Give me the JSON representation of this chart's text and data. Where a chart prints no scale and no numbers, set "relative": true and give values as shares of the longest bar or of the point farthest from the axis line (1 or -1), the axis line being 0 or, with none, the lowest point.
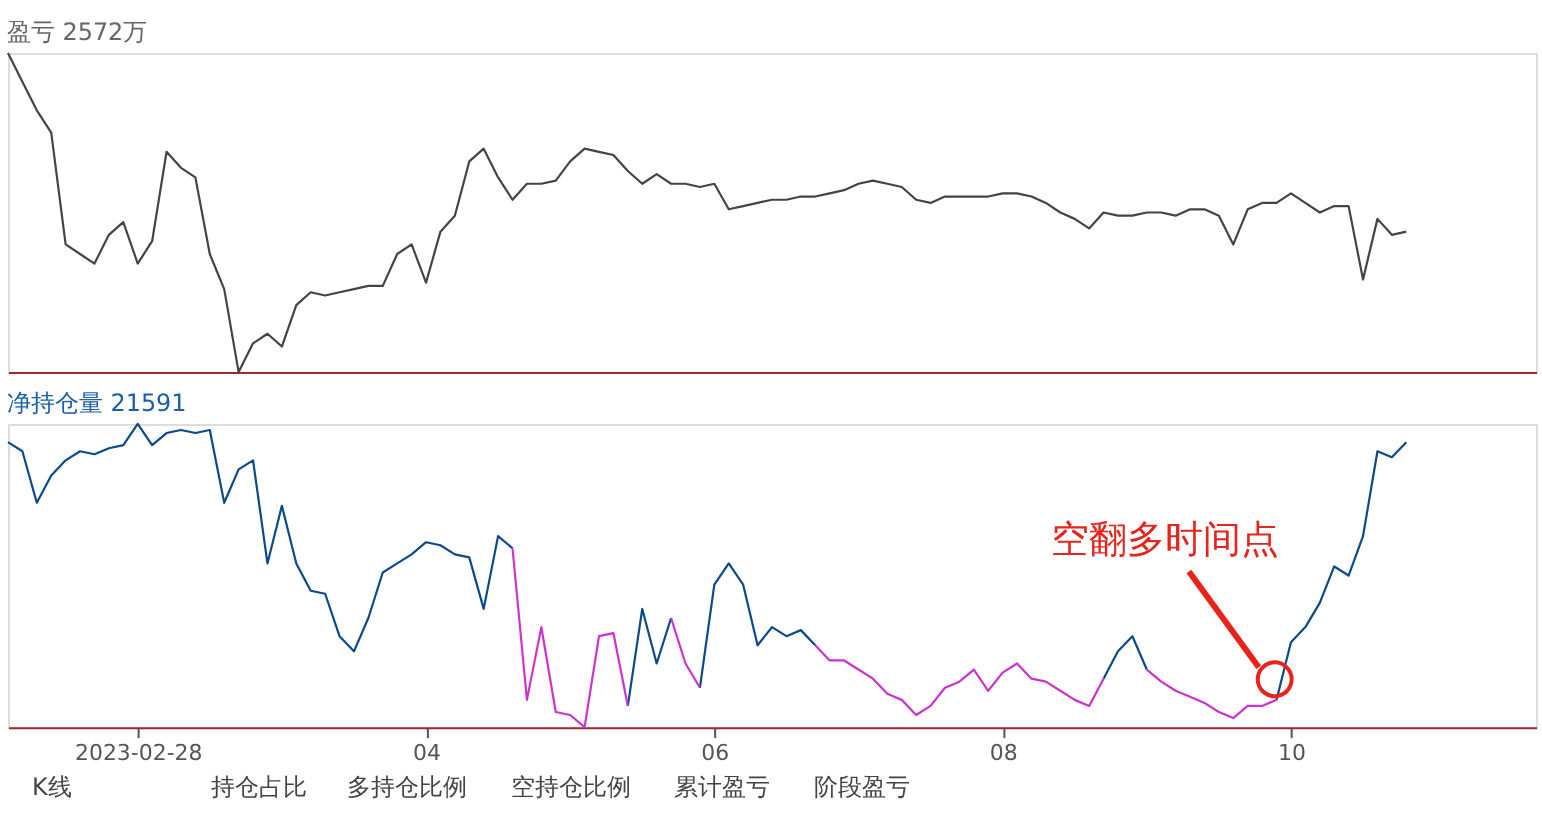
{
  "chart_data": [
    {
      "type": "line",
      "title": "盈亏 2572万",
      "relative": true,
      "tick_labels": false,
      "categories": [
        null,
        null,
        null,
        null,
        null,
        null,
        null,
        null,
        null,
        "2023-02-28",
        null,
        null,
        null,
        null,
        null,
        null,
        null,
        null,
        null,
        null,
        null,
        null,
        null,
        null,
        null,
        null,
        null,
        null,
        null,
        "04",
        null,
        null,
        null,
        null,
        null,
        null,
        null,
        null,
        null,
        null,
        null,
        null,
        null,
        null,
        null,
        null,
        null,
        null,
        null,
        "06",
        null,
        null,
        null,
        null,
        null,
        null,
        null,
        null,
        null,
        null,
        null,
        null,
        null,
        null,
        null,
        null,
        null,
        null,
        null,
        "08",
        null,
        null,
        null,
        null,
        null,
        null,
        null,
        null,
        null,
        null,
        null,
        null,
        null,
        null,
        null,
        null,
        null,
        null,
        null,
        "10",
        null,
        null,
        null,
        null,
        null,
        null,
        null,
        null,
        null,
        null,
        null,
        null,
        null,
        null,
        null,
        null,
        null
      ],
      "series": [
        {
          "color": "#444444",
          "values": [
            1.0,
            0.91,
            0.82,
            0.75,
            0.4,
            0.37,
            0.34,
            0.43,
            0.47,
            0.34,
            0.41,
            0.69,
            0.64,
            0.61,
            0.37,
            0.26,
            0,
            0.09,
            0.12,
            0.08,
            0.21,
            0.25,
            0.24,
            0.25,
            0.26,
            0.27,
            0.27,
            0.37,
            0.4,
            0.28,
            0.44,
            0.49,
            0.66,
            0.7,
            0.61,
            0.54,
            0.59,
            0.59,
            0.6,
            0.66,
            0.7,
            0.69,
            0.68,
            0.63,
            0.59,
            0.62,
            0.59,
            0.59,
            0.58,
            0.59,
            0.51,
            0.52,
            0.53,
            0.54,
            0.54,
            0.55,
            0.55,
            0.56,
            0.57,
            0.59,
            0.6,
            0.59,
            0.58,
            0.54,
            0.53,
            0.55,
            0.55,
            0.55,
            0.55,
            0.56,
            0.56,
            0.55,
            0.53,
            0.5,
            0.48,
            0.45,
            0.5,
            0.49,
            0.49,
            0.5,
            0.5,
            0.49,
            0.51,
            0.51,
            0.49,
            0.4,
            0.51,
            0.53,
            0.53,
            0.56,
            0.53,
            0.5,
            0.52,
            0.52,
            0.29,
            0.48,
            0.43,
            0.44,
            null,
            null,
            null,
            null,
            null,
            null,
            null,
            null,
            null
          ]
        }
      ]
    },
    {
      "type": "line",
      "title": "净持仓量 21591",
      "relative": true,
      "tick_labels": "x",
      "annotations": [
        "空翻多时间点",
        "K线",
        "持仓占比",
        "多持仓比例",
        "空持仓比例",
        "累计盈亏",
        "阶段盈亏"
      ],
      "categories": [
        null,
        null,
        null,
        null,
        null,
        null,
        null,
        null,
        null,
        "2023-02-28",
        null,
        null,
        null,
        null,
        null,
        null,
        null,
        null,
        null,
        null,
        null,
        null,
        null,
        null,
        null,
        null,
        null,
        null,
        null,
        "04",
        null,
        null,
        null,
        null,
        null,
        null,
        null,
        null,
        null,
        null,
        null,
        null,
        null,
        null,
        null,
        null,
        null,
        null,
        null,
        "06",
        null,
        null,
        null,
        null,
        null,
        null,
        null,
        null,
        null,
        null,
        null,
        null,
        null,
        null,
        null,
        null,
        null,
        null,
        null,
        "08",
        null,
        null,
        null,
        null,
        null,
        null,
        null,
        null,
        null,
        null,
        null,
        null,
        null,
        null,
        null,
        null,
        null,
        null,
        null,
        "10",
        null,
        null,
        null,
        null,
        null,
        null,
        null,
        null,
        null,
        null,
        null,
        null,
        null,
        null,
        null,
        null,
        null
      ],
      "series": [
        {
          "color": "#0b4a8a",
          "values": [
            0.94,
            0.91,
            0.74,
            0.83,
            0.88,
            0.91,
            0.9,
            0.92,
            0.93,
            1,
            0.93,
            0.97,
            0.98,
            0.97,
            0.98,
            0.74,
            0.85,
            0.88,
            0.54,
            0.73,
            0.54,
            0.45,
            0.44,
            0.3,
            0.25,
            0.36,
            0.51,
            0.54,
            0.57,
            0.61,
            0.6,
            0.57,
            0.56,
            0.39,
            0.63,
            0.59,
            null,
            null,
            null,
            null,
            null,
            null,
            null,
            0.07,
            0.39,
            0.21,
            0.36,
            null,
            0.13,
            0.47,
            0.54,
            0.47,
            0.27,
            0.33,
            0.3,
            0.32,
            0.27,
            null,
            null,
            null,
            null,
            null,
            null,
            null,
            null,
            null,
            null,
            null,
            null,
            null,
            null,
            null,
            null,
            null,
            null,
            null,
            0.16,
            0.25,
            0.3,
            0.19,
            null,
            null,
            null,
            null,
            null,
            null,
            null,
            null,
            0.09,
            0.28,
            0.33,
            0.41,
            0.53,
            0.5,
            0.63,
            0.91,
            0.89,
            0.94,
            null,
            null,
            null,
            null,
            null,
            null,
            null,
            null,
            null
          ]
        },
        {
          "color": "#cc33cc",
          "values": [
            null,
            null,
            null,
            null,
            null,
            null,
            null,
            null,
            null,
            null,
            null,
            null,
            null,
            null,
            null,
            null,
            null,
            null,
            null,
            null,
            null,
            null,
            null,
            null,
            null,
            null,
            null,
            null,
            null,
            null,
            null,
            null,
            null,
            null,
            null,
            0.59,
            0.09,
            0.33,
            0.05,
            0.04,
            0,
            0.3,
            0.31,
            0.07,
            null,
            null,
            0.36,
            0.21,
            0.13,
            null,
            null,
            null,
            null,
            null,
            null,
            null,
            0.27,
            0.22,
            0.22,
            0.19,
            0.16,
            0.11,
            0.09,
            0.04,
            0.07,
            0.13,
            0.15,
            0.19,
            0.12,
            0.18,
            0.21,
            0.16,
            0.15,
            0.12,
            0.09,
            0.07,
            0.16,
            null,
            null,
            0.19,
            0.15,
            0.12,
            0.1,
            0.08,
            0.05,
            0.03,
            0.07,
            0.07,
            0.09,
            null,
            null,
            null,
            null,
            null,
            null,
            null,
            null,
            null,
            null,
            null,
            null,
            null,
            null,
            null,
            null,
            null,
            null
          ]
        }
      ]
    }
  ]
}
